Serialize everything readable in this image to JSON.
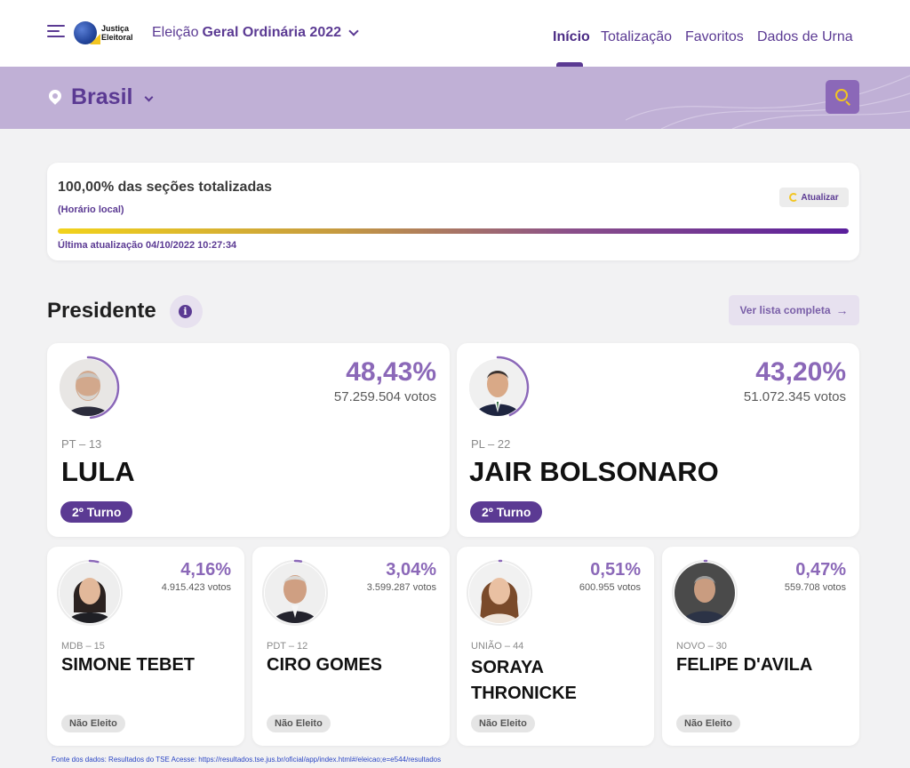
{
  "header": {
    "menu_icon": "hamburger-icon",
    "logo_line1": "Justiça",
    "logo_line2": "Eleitoral",
    "election_prefix": "Eleição",
    "election_name": "Geral Ordinária 2022",
    "nav": [
      "Início",
      "Totalização",
      "Favoritos",
      "Dados de Urna"
    ],
    "active_nav": "Início"
  },
  "location": {
    "title": "Brasil",
    "icon": "map-pin-icon",
    "search_icon": "search-icon"
  },
  "status": {
    "title": "100,00% das seções totalizadas",
    "subtitle": "(Horário local)",
    "progress_percent": 100,
    "updated": "Última atualização 04/10/2022 10:27:34",
    "refresh_label": "Atualizar"
  },
  "section": {
    "title": "Presidente",
    "list_button": "Ver lista completa"
  },
  "candidates": [
    {
      "party": "PT – 13",
      "name": "LULA",
      "pct": "48,43%",
      "votes": "57.259.504 votos",
      "status": "2º Turno",
      "share": 48.43
    },
    {
      "party": "PL – 22",
      "name": "JAIR BOLSONARO",
      "pct": "43,20%",
      "votes": "51.072.345 votos",
      "status": "2º Turno",
      "share": 43.2
    },
    {
      "party": "MDB – 15",
      "name": "SIMONE TEBET",
      "pct": "4,16%",
      "votes": "4.915.423 votos",
      "status": "Não Eleito",
      "share": 4.16
    },
    {
      "party": "PDT – 12",
      "name": "CIRO GOMES",
      "pct": "3,04%",
      "votes": "3.599.287 votos",
      "status": "Não Eleito",
      "share": 3.04
    },
    {
      "party": "UNIÃO – 44",
      "name_line1": "SORAYA",
      "name_line2": "THRONICKE",
      "pct": "0,51%",
      "votes": "600.955 votos",
      "status": "Não Eleito",
      "share": 0.51
    },
    {
      "party": "NOVO – 30",
      "name": "FELIPE D'AVILA",
      "pct": "0,47%",
      "votes": "559.708 votos",
      "status": "Não Eleito",
      "share": 0.47
    }
  ],
  "footer": "Fonte dos dados: Resultados do TSE Acesse: https://resultados.tse.jus.br/oficial/app/index.html#/eleicao;e=e544/resultados",
  "colors": {
    "accent": "#5b3a93",
    "band": "#c0b0d6",
    "pct": "#8b68b8",
    "gold": "#f2c521"
  }
}
